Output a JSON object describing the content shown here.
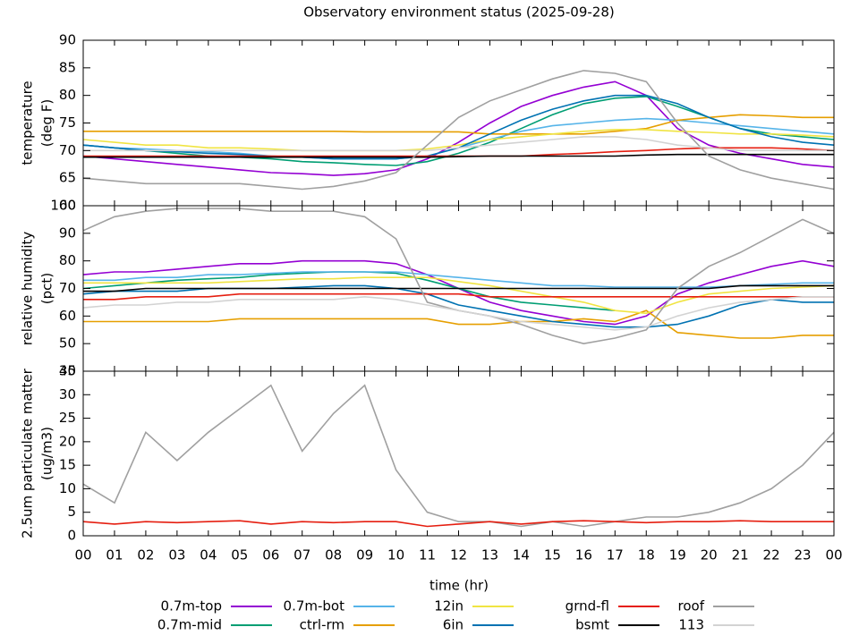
{
  "chart_data": [
    {
      "type": "line",
      "title": "Observatory environment status (2025-09-28)",
      "ylabel": [
        "temperature",
        "(deg F)"
      ],
      "x": [
        0,
        1,
        2,
        3,
        4,
        5,
        6,
        7,
        8,
        9,
        10,
        11,
        12,
        13,
        14,
        15,
        16,
        17,
        18,
        19,
        20,
        21,
        22,
        23,
        24
      ],
      "xlim": [
        0,
        24
      ],
      "ylim": [
        60,
        90
      ],
      "yticks": [
        60,
        65,
        70,
        75,
        80,
        85,
        90
      ],
      "series": [
        {
          "name": "0.7m-top",
          "color": "#9400d3",
          "values": [
            69,
            68.5,
            68,
            67.5,
            67,
            66.5,
            66,
            65.8,
            65.5,
            65.8,
            66.5,
            68.5,
            71.5,
            75,
            78,
            80,
            81.5,
            82.5,
            80,
            74,
            71,
            69.5,
            68.5,
            67.5,
            67
          ]
        },
        {
          "name": "0.7m-mid",
          "color": "#009e73",
          "values": [
            71,
            70.5,
            70,
            69.5,
            69,
            68.8,
            68.5,
            68,
            67.8,
            67.5,
            67.3,
            68,
            69.5,
            71.5,
            74,
            76.5,
            78.5,
            79.5,
            79.8,
            78,
            76,
            74,
            73,
            72.5,
            72
          ]
        },
        {
          "name": "0.7m-bot",
          "color": "#56b4e9",
          "values": [
            71,
            70.5,
            70.3,
            70,
            69.8,
            69.5,
            69,
            68.8,
            68.5,
            68.5,
            68.5,
            69,
            70.5,
            72,
            73.5,
            74.5,
            75,
            75.5,
            75.8,
            75.5,
            75,
            74.5,
            74,
            73.5,
            73
          ]
        },
        {
          "name": "ctrl-rm",
          "color": "#e69f00",
          "values": [
            73.5,
            73.5,
            73.5,
            73.5,
            73.5,
            73.5,
            73.5,
            73.5,
            73.5,
            73.4,
            73.4,
            73.4,
            73.4,
            73,
            73,
            73,
            73,
            73.5,
            74,
            75.5,
            76,
            76.5,
            76.3,
            76,
            76
          ]
        },
        {
          "name": "12in",
          "color": "#f0e442",
          "values": [
            72,
            71.5,
            71,
            71,
            70.5,
            70.5,
            70.3,
            70,
            70,
            70,
            70,
            70.3,
            71,
            72,
            72.5,
            73,
            73.5,
            73.8,
            73.8,
            73.5,
            73.3,
            73,
            73,
            72.8,
            72.5
          ]
        },
        {
          "name": "6in",
          "color": "#0072b2",
          "values": [
            71,
            70.5,
            70,
            69.8,
            69.5,
            69.3,
            69,
            68.8,
            68.5,
            68.5,
            68.5,
            69,
            70.5,
            73,
            75.5,
            77.5,
            79,
            80,
            80,
            78.5,
            76,
            74,
            72.5,
            71.5,
            71
          ]
        },
        {
          "name": "grnd-fl",
          "color": "#e51e10",
          "values": [
            69,
            69,
            69,
            69,
            69,
            69,
            69,
            69,
            69,
            69,
            69,
            69,
            69,
            69,
            69,
            69.3,
            69.5,
            69.8,
            70,
            70.3,
            70.5,
            70.5,
            70.5,
            70.3,
            70
          ]
        },
        {
          "name": "bsmt",
          "color": "#000000",
          "values": [
            68.8,
            68.8,
            68.8,
            68.8,
            68.8,
            68.8,
            68.8,
            68.8,
            68.8,
            68.8,
            68.8,
            68.8,
            68.9,
            69,
            69,
            69,
            69,
            69,
            69.2,
            69.3,
            69.3,
            69.3,
            69.3,
            69.3,
            69.3
          ]
        },
        {
          "name": "roof",
          "color": "#a0a0a0",
          "values": [
            65,
            64.5,
            64,
            64,
            64,
            64,
            63.5,
            63,
            63.5,
            64.5,
            66,
            71,
            76,
            79,
            81,
            83,
            84.5,
            84,
            82.5,
            75,
            69,
            66.5,
            65,
            64,
            63
          ]
        },
        {
          "name": "113",
          "color": "#d3d3d3",
          "values": [
            70,
            70,
            70,
            70,
            70,
            70,
            70,
            70,
            70,
            70,
            70,
            70,
            70.5,
            71,
            71.5,
            72,
            72.5,
            72.5,
            72,
            71,
            70.5,
            70,
            70,
            70,
            70
          ]
        }
      ]
    },
    {
      "type": "line",
      "ylabel": [
        "relative humidity",
        "(pct)"
      ],
      "x": [
        0,
        1,
        2,
        3,
        4,
        5,
        6,
        7,
        8,
        9,
        10,
        11,
        12,
        13,
        14,
        15,
        16,
        17,
        18,
        19,
        20,
        21,
        22,
        23,
        24
      ],
      "xlim": [
        0,
        24
      ],
      "ylim": [
        40,
        100
      ],
      "yticks": [
        40,
        50,
        60,
        70,
        80,
        90,
        100
      ],
      "series": [
        {
          "color": "#9400d3",
          "values": [
            75,
            76,
            76,
            77,
            78,
            79,
            79,
            80,
            80,
            80,
            79,
            75,
            70,
            65,
            62,
            60,
            58,
            57,
            60,
            68,
            72,
            75,
            78,
            80,
            78
          ]
        },
        {
          "color": "#009e73",
          "values": [
            70,
            71,
            72,
            73,
            73.5,
            74,
            75,
            75.5,
            76,
            76,
            75.5,
            73,
            70,
            67,
            65,
            64,
            63,
            62,
            null,
            null,
            null,
            null,
            null,
            null,
            null
          ]
        },
        {
          "color": "#56b4e9",
          "values": [
            73,
            73,
            74,
            74,
            75,
            75,
            75.5,
            76,
            76,
            76,
            76,
            75,
            74,
            73,
            72,
            71,
            71,
            70.5,
            70.5,
            70.5,
            70.5,
            71,
            71.5,
            72,
            72
          ]
        },
        {
          "color": "#e69f00",
          "values": [
            58,
            58,
            58,
            58,
            58,
            59,
            59,
            59,
            59,
            59,
            59,
            59,
            57,
            57,
            58,
            58,
            59,
            58,
            62,
            54,
            53,
            52,
            52,
            53,
            53
          ]
        },
        {
          "color": "#f0e442",
          "values": [
            72,
            72,
            72,
            72,
            72,
            72.5,
            73,
            73.5,
            73.5,
            74,
            74,
            74,
            72.5,
            71,
            69,
            67,
            65,
            62,
            61,
            65,
            68,
            69,
            70,
            70.5,
            71
          ]
        },
        {
          "color": "#0072b2",
          "values": [
            68,
            69,
            69,
            69,
            70,
            70,
            70,
            70.5,
            71,
            71,
            70,
            68,
            64,
            62,
            60,
            58,
            57,
            56,
            56,
            57,
            60,
            64,
            66,
            65,
            65
          ]
        },
        {
          "color": "#e51e10",
          "values": [
            66,
            66,
            67,
            67,
            67,
            68,
            68,
            68,
            68,
            68,
            68,
            68,
            68,
            67,
            67,
            67,
            67,
            67,
            67,
            67,
            67,
            67,
            67,
            67,
            67
          ]
        },
        {
          "color": "#000000",
          "values": [
            69,
            69,
            70,
            70,
            70,
            70,
            70,
            70,
            70,
            70,
            70,
            70,
            70,
            70,
            70,
            70,
            70,
            70,
            70,
            70,
            70,
            71,
            71,
            71,
            71
          ]
        },
        {
          "color": "#a0a0a0",
          "values": [
            91,
            96,
            98,
            99,
            99,
            99,
            98,
            98,
            98,
            96,
            88,
            65,
            62,
            60,
            57,
            53,
            50,
            52,
            55,
            70,
            78,
            83,
            89,
            95,
            90
          ]
        },
        {
          "color": "#d3d3d3",
          "values": [
            63,
            64,
            64,
            65,
            65,
            66,
            66,
            66,
            66,
            67,
            66,
            64,
            62,
            60,
            58,
            57,
            56,
            55,
            56,
            60,
            63,
            65,
            66,
            67,
            67
          ]
        }
      ]
    },
    {
      "type": "line",
      "ylabel": [
        "2.5um particulate matter",
        "(ug/m3)"
      ],
      "xlabel": "time (hr)",
      "x": [
        0,
        1,
        2,
        3,
        4,
        5,
        6,
        7,
        8,
        9,
        10,
        11,
        12,
        13,
        14,
        15,
        16,
        17,
        18,
        19,
        20,
        21,
        22,
        23,
        24
      ],
      "xlim": [
        0,
        24
      ],
      "ylim": [
        0,
        35
      ],
      "yticks": [
        0,
        5,
        10,
        15,
        20,
        25,
        30,
        35
      ],
      "xticks": [
        {
          "value": 0,
          "label": "00"
        },
        {
          "value": 1,
          "label": "01"
        },
        {
          "value": 2,
          "label": "02"
        },
        {
          "value": 3,
          "label": "03"
        },
        {
          "value": 4,
          "label": "04"
        },
        {
          "value": 5,
          "label": "05"
        },
        {
          "value": 6,
          "label": "06"
        },
        {
          "value": 7,
          "label": "07"
        },
        {
          "value": 8,
          "label": "08"
        },
        {
          "value": 9,
          "label": "09"
        },
        {
          "value": 10,
          "label": "10"
        },
        {
          "value": 11,
          "label": "11"
        },
        {
          "value": 12,
          "label": "12"
        },
        {
          "value": 13,
          "label": "13"
        },
        {
          "value": 14,
          "label": "14"
        },
        {
          "value": 15,
          "label": "15"
        },
        {
          "value": 16,
          "label": "16"
        },
        {
          "value": 17,
          "label": "17"
        },
        {
          "value": 18,
          "label": "18"
        },
        {
          "value": 19,
          "label": "19"
        },
        {
          "value": 20,
          "label": "20"
        },
        {
          "value": 21,
          "label": "21"
        },
        {
          "value": 22,
          "label": "22"
        },
        {
          "value": 23,
          "label": "23"
        },
        {
          "value": 24,
          "label": "00"
        }
      ],
      "series": [
        {
          "color": "#a0a0a0",
          "values": [
            11,
            7,
            22,
            16,
            22,
            27,
            32,
            18,
            26,
            32,
            14,
            5,
            3,
            3,
            2,
            3,
            2,
            3,
            4,
            4,
            5,
            7,
            10,
            15,
            22
          ]
        },
        {
          "color": "#e51e10",
          "values": [
            3,
            2.5,
            3,
            2.8,
            3,
            3.2,
            2.5,
            3,
            2.8,
            3,
            3,
            2,
            2.5,
            3,
            2.5,
            3,
            3.2,
            3,
            2.8,
            3,
            3,
            3.2,
            3,
            3,
            3
          ]
        }
      ]
    }
  ]
}
